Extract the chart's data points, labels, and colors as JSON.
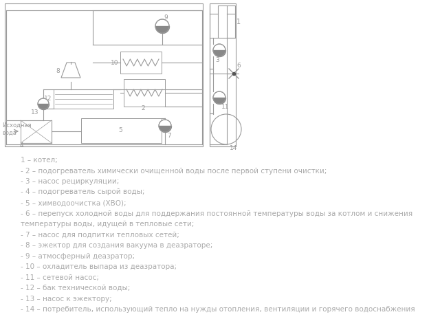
{
  "background_color": "#ffffff",
  "text_lines": [
    "1 – котел;",
    "- 2 – подогреватель химически очищенной воды после первой ступени очистки;",
    "- 3 – насос рециркуляции;",
    "- 4 – подогреватель сырой воды;",
    "- 5 – химводоочистка (ХВО);",
    "- 6 – перепуск холодной воды для поддержания постоянной температуры воды за котлом и снижения",
    "температуры воды, идущей в тепловые сети;",
    "- 7 – насос для подпитки тепловых сетей;",
    "- 8 – эжектор для создания вакуума в деазраторе;",
    "- 9 – атмосферный деазратор;",
    "- 10 – охладитель выпара из деазратора;",
    "- 11 – сетевой насос;",
    "- 12 – бак технической воды;",
    "- 13 – насос к эжектору;",
    "- 14 – потребитель, использующий тепло на нужды отопления, вентиляции и горячего водоснабжения"
  ],
  "text_color": "#aaaaaa",
  "font_size": 7.5,
  "line_color": "#999999"
}
